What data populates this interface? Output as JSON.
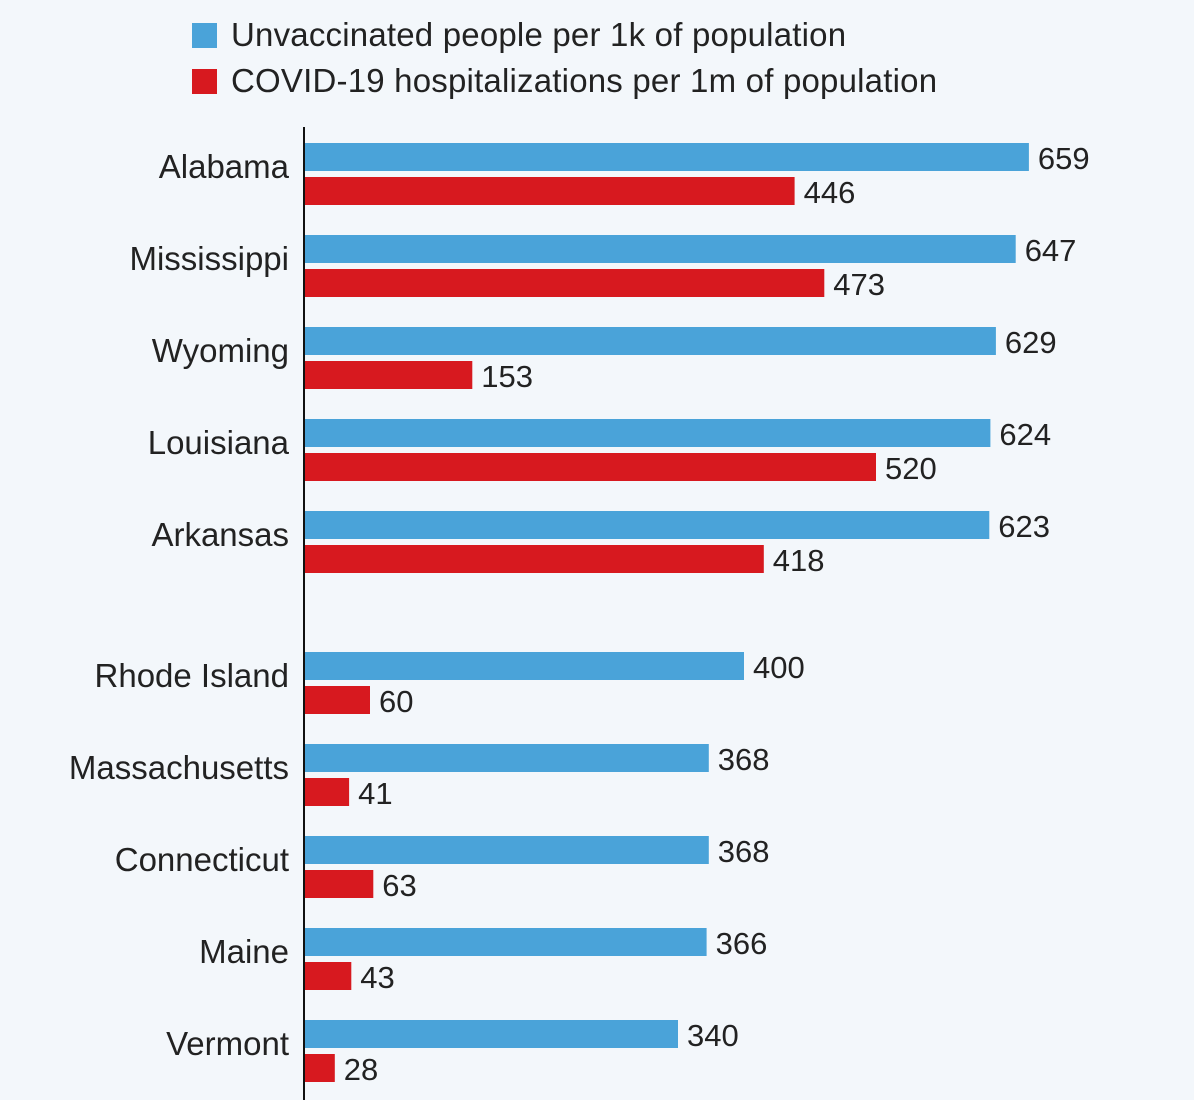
{
  "chart_data": {
    "type": "bar",
    "orientation": "horizontal",
    "legend_position": "top",
    "grid": false,
    "categories": [
      "Alabama",
      "Mississippi",
      "Wyoming",
      "Louisiana",
      "Arkansas",
      "Rhode Island",
      "Massachusetts",
      "Connecticut",
      "Maine",
      "Vermont"
    ],
    "series": [
      {
        "name": "Unvaccinated people per 1k of population",
        "color": "#4aa3d9",
        "values": [
          659,
          647,
          629,
          624,
          623,
          400,
          368,
          368,
          366,
          340
        ]
      },
      {
        "name": "COVID-19 hospitalizations per 1m of population",
        "color": "#d7191f",
        "values": [
          446,
          473,
          153,
          520,
          418,
          60,
          41,
          63,
          43,
          28
        ]
      }
    ],
    "xlim": [
      0,
      700
    ]
  }
}
